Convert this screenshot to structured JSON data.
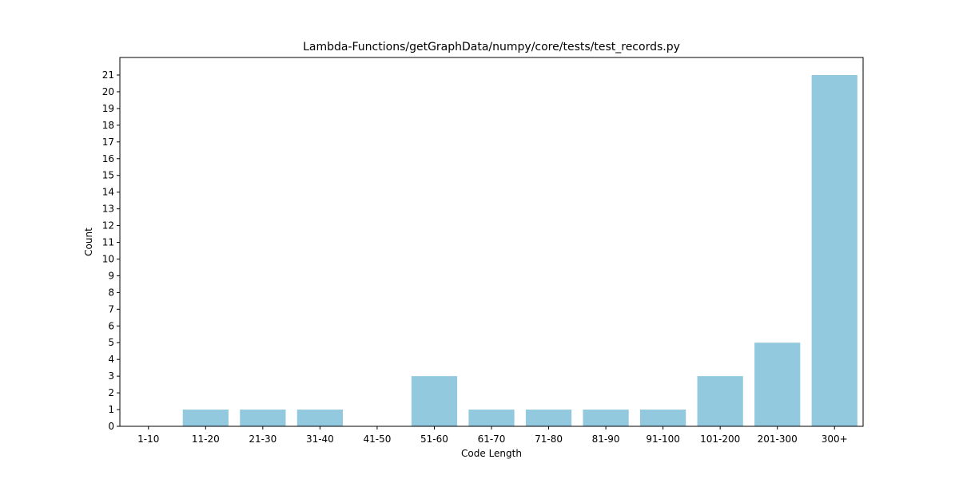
{
  "chart_data": {
    "type": "bar",
    "title": "Lambda-Functions/getGraphData/numpy/core/tests/test_records.py",
    "xlabel": "Code Length",
    "ylabel": "Count",
    "categories": [
      "1-10",
      "11-20",
      "21-30",
      "31-40",
      "41-50",
      "51-60",
      "61-70",
      "71-80",
      "81-90",
      "91-100",
      "101-200",
      "201-300",
      "300+"
    ],
    "values": [
      0,
      1,
      1,
      1,
      0,
      3,
      1,
      1,
      1,
      1,
      3,
      5,
      21
    ],
    "ylim": [
      0,
      22.05
    ],
    "yticks": [
      0,
      1,
      2,
      3,
      4,
      5,
      6,
      7,
      8,
      9,
      10,
      11,
      12,
      13,
      14,
      15,
      16,
      17,
      18,
      19,
      20,
      21
    ],
    "bar_color": "#92c9df",
    "grid": false,
    "legend": "none"
  }
}
